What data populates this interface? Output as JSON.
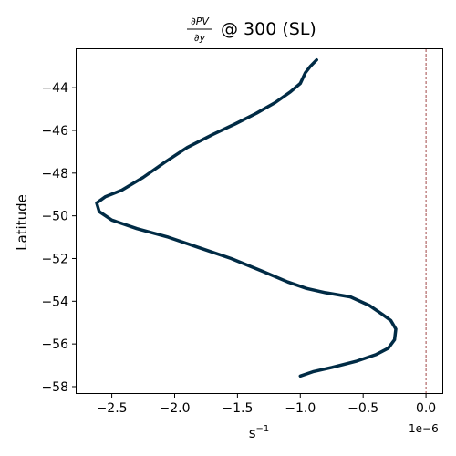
{
  "chart_data": {
    "type": "line",
    "title": {
      "numerator": "∂PV",
      "denominator": "∂y",
      "suffix": "@ 300 (SL)"
    },
    "xlabel": {
      "base": "s",
      "exponent": "−1"
    },
    "ylabel": "Latitude",
    "x_offset_label": "1e−6",
    "x_scale_factor": 1e-06,
    "xlim": [
      -2.78,
      0.13
    ],
    "ylim": [
      -58.3,
      -42.2
    ],
    "x_ticks": [
      -2.5,
      -2.0,
      -1.5,
      -1.0,
      -0.5,
      0.0
    ],
    "x_tick_labels": [
      "−2.5",
      "−2.0",
      "−1.5",
      "−1.0",
      "−0.5",
      "0.0"
    ],
    "y_ticks": [
      -44,
      -46,
      -48,
      -50,
      -52,
      -54,
      -56,
      -58
    ],
    "y_tick_labels": [
      "−44",
      "−46",
      "−48",
      "−50",
      "−52",
      "−54",
      "−56",
      "−58"
    ],
    "grid": false,
    "reference_line": {
      "x": 0.0,
      "style": "dashed",
      "color": "#8b1a1a"
    },
    "series": [
      {
        "color": "#002b45",
        "x": [
          -0.87,
          -0.92,
          -0.96,
          -1.0,
          -1.08,
          -1.2,
          -1.35,
          -1.52,
          -1.7,
          -1.9,
          -2.08,
          -2.25,
          -2.42,
          -2.55,
          -2.62,
          -2.6,
          -2.5,
          -2.3,
          -2.05,
          -1.8,
          -1.55,
          -1.3,
          -1.1,
          -0.95,
          -0.8,
          -0.6,
          -0.45,
          -0.35,
          -0.28,
          -0.24,
          -0.25,
          -0.3,
          -0.4,
          -0.55,
          -0.75,
          -0.9,
          -1.0
        ],
        "y": [
          -42.7,
          -43.0,
          -43.3,
          -43.8,
          -44.2,
          -44.7,
          -45.2,
          -45.7,
          -46.2,
          -46.8,
          -47.5,
          -48.2,
          -48.8,
          -49.1,
          -49.4,
          -49.8,
          -50.2,
          -50.6,
          -51.0,
          -51.5,
          -52.0,
          -52.6,
          -53.1,
          -53.4,
          -53.6,
          -53.8,
          -54.2,
          -54.6,
          -54.9,
          -55.3,
          -55.8,
          -56.2,
          -56.5,
          -56.8,
          -57.1,
          -57.3,
          -57.5
        ]
      }
    ]
  }
}
